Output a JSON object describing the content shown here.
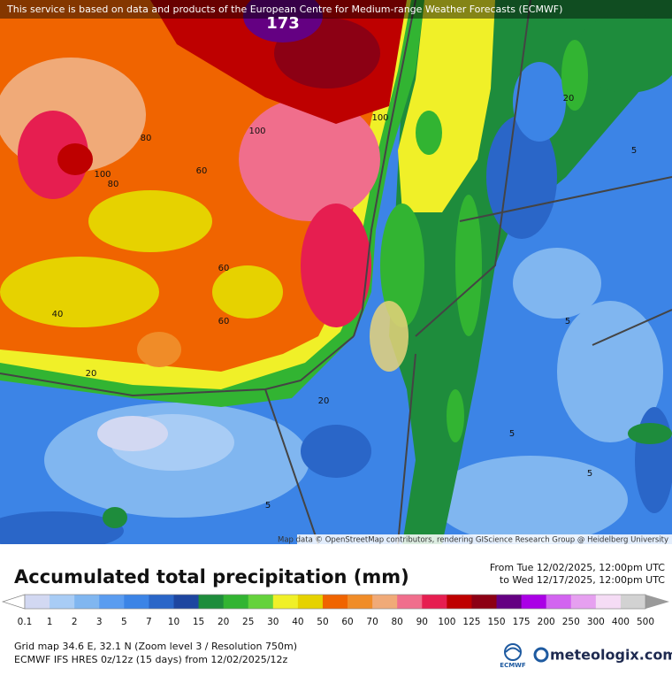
{
  "header": {
    "notice": "This service is based on data and products of the European Centre for Medium-range Weather Forecasts (ECMWF)"
  },
  "map": {
    "contour_labels": [
      173,
      100,
      100,
      80,
      60,
      100,
      80,
      60,
      40,
      60,
      20,
      5,
      5,
      20,
      20,
      5,
      5,
      5
    ],
    "attribution": "Map data © OpenStreetMap contributors, rendering GIScience Research Group @ Heidelberg University"
  },
  "legend": {
    "title": "Accumulated total precipitation (mm)",
    "period_from": "From Tue 12/02/2025, 12:00pm UTC",
    "period_to": "to Wed 12/17/2025, 12:00pm UTC",
    "labels": [
      0.1,
      1,
      2,
      3,
      5,
      7,
      10,
      15,
      20,
      25,
      30,
      40,
      50,
      60,
      70,
      80,
      90,
      100,
      125,
      150,
      175,
      200,
      250,
      300,
      400,
      500
    ],
    "colors": [
      "#d2d8f2",
      "#a8ccf5",
      "#80b6f0",
      "#5a9cf0",
      "#3c84e6",
      "#2a66c8",
      "#1e46a0",
      "#1e8c3c",
      "#32b432",
      "#64d23c",
      "#f0f028",
      "#e6d200",
      "#f06400",
      "#f08c28",
      "#f0aa78",
      "#f06e8c",
      "#e61e50",
      "#be0000",
      "#8c0014",
      "#640082",
      "#aa00e6",
      "#d264f0",
      "#e6a0f0",
      "#f5dcf5",
      "#d2d2d2"
    ],
    "low_color": "#ffffff",
    "high_color": "#9a9a9a"
  },
  "footer": {
    "grid": "Grid map 34.6 E, 32.1 N (Zoom level 3 / Resolution 750m)",
    "model": "ECMWF IFS HRES 0z/12z (15 days) from  12/02/2025/12z",
    "ecmwf_logo": "ECMWF",
    "brand": "meteologix.com"
  }
}
